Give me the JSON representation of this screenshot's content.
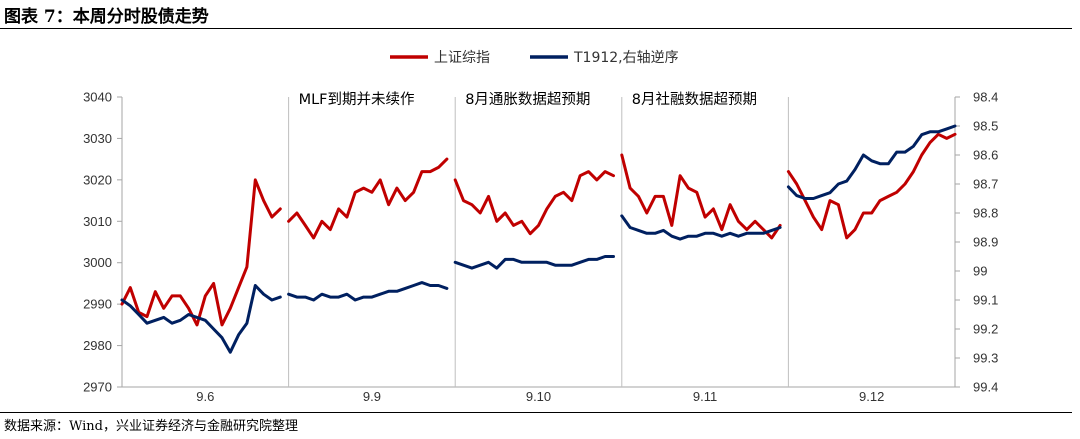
{
  "figure_title": "图表 7：本周分时股债走势",
  "source_note": "数据来源：Wind，兴业证券经济与金融研究院整理",
  "colors": {
    "series_0": "#C00000",
    "series_1": "#002060",
    "axis": "#A6A6A6",
    "divider": "#BFBFBF"
  },
  "chart_data": {
    "type": "line",
    "title": "",
    "legend_position": "top-center",
    "grid": false,
    "xlabel": "",
    "ylabel": "",
    "categories": [
      "9.6",
      "9.9",
      "9.10",
      "9.11",
      "9.12"
    ],
    "ylim": [
      2970,
      3040
    ],
    "y_ticks": [
      "2970",
      "2980",
      "2990",
      "3000",
      "3010",
      "3020",
      "3030",
      "3040"
    ],
    "y2lim": [
      99.4,
      98.4
    ],
    "y2_reversed": true,
    "y2_ticks": [
      "99.4",
      "99.3",
      "99.2",
      "99.1",
      "99",
      "98.9",
      "98.8",
      "98.7",
      "98.6",
      "98.5",
      "98.4"
    ],
    "annotations": [
      {
        "after_day": "9.6",
        "text": "MLF到期并未续作"
      },
      {
        "after_day": "9.9",
        "text": "8月通胀数据超预期"
      },
      {
        "after_day": "9.10",
        "text": "8月社融数据超预期"
      }
    ],
    "x": [
      0.0,
      0.05,
      0.1,
      0.15,
      0.2,
      0.25,
      0.3,
      0.35,
      0.4,
      0.45,
      0.5,
      0.55,
      0.6,
      0.65,
      0.7,
      0.75,
      0.8,
      0.85,
      0.9,
      0.95,
      1.0,
      1.05,
      1.1,
      1.15,
      1.2,
      1.25,
      1.3,
      1.35,
      1.4,
      1.45,
      1.5,
      1.55,
      1.6,
      1.65,
      1.7,
      1.75,
      1.8,
      1.85,
      1.9,
      1.95,
      2.0,
      2.05,
      2.1,
      2.15,
      2.2,
      2.25,
      2.3,
      2.35,
      2.4,
      2.45,
      2.5,
      2.55,
      2.6,
      2.65,
      2.7,
      2.75,
      2.8,
      2.85,
      2.9,
      2.95,
      3.0,
      3.05,
      3.1,
      3.15,
      3.2,
      3.25,
      3.3,
      3.35,
      3.4,
      3.45,
      3.5,
      3.55,
      3.6,
      3.65,
      3.7,
      3.75,
      3.8,
      3.85,
      3.9,
      3.95,
      4.0,
      4.05,
      4.1,
      4.15,
      4.2,
      4.25,
      4.3,
      4.35,
      4.4,
      4.45,
      4.5,
      4.55,
      4.6,
      4.65,
      4.7,
      4.75,
      4.8,
      4.85,
      4.9,
      4.95,
      5.0
    ],
    "series": [
      {
        "name": "上证综指",
        "axis": "left",
        "values": [
          2990,
          2994,
          2988,
          2987,
          2993,
          2989,
          2992,
          2992,
          2989,
          2985,
          2992,
          2995,
          2985,
          2989,
          2994,
          2999,
          3020,
          3015,
          3011,
          3013,
          3010,
          3012,
          3009,
          3006,
          3010,
          3008,
          3013,
          3011,
          3017,
          3018,
          3017,
          3020,
          3014,
          3018,
          3015,
          3017,
          3022,
          3022,
          3023,
          3025,
          3020,
          3015,
          3014,
          3012,
          3016,
          3010,
          3012,
          3009,
          3010,
          3007,
          3009,
          3013,
          3016,
          3017,
          3015,
          3021,
          3022,
          3020,
          3022,
          3021,
          3026,
          3018,
          3016,
          3012,
          3016,
          3016,
          3009,
          3021,
          3018,
          3017,
          3011,
          3013,
          3008,
          3014,
          3010,
          3008,
          3010,
          3008,
          3006,
          3009,
          3022,
          3019,
          3015,
          3011,
          3008,
          3015,
          3014,
          3006,
          3008,
          3012,
          3012,
          3015,
          3016,
          3017,
          3019,
          3022,
          3026,
          3029,
          3031,
          3030,
          3031
        ]
      },
      {
        "name": "T1912,右轴逆序",
        "axis": "right",
        "values": [
          99.1,
          99.12,
          99.15,
          99.18,
          99.17,
          99.16,
          99.18,
          99.17,
          99.15,
          99.16,
          99.17,
          99.2,
          99.23,
          99.28,
          99.22,
          99.18,
          99.05,
          99.08,
          99.1,
          99.09,
          99.08,
          99.09,
          99.09,
          99.1,
          99.08,
          99.09,
          99.09,
          99.08,
          99.1,
          99.09,
          99.09,
          99.08,
          99.07,
          99.07,
          99.06,
          99.05,
          99.04,
          99.05,
          99.05,
          99.06,
          98.97,
          98.98,
          98.99,
          98.98,
          98.97,
          98.99,
          98.96,
          98.96,
          98.97,
          98.97,
          98.97,
          98.97,
          98.98,
          98.98,
          98.98,
          98.97,
          98.96,
          98.96,
          98.95,
          98.95,
          98.81,
          98.85,
          98.86,
          98.87,
          98.87,
          98.86,
          98.88,
          98.89,
          98.88,
          98.88,
          98.87,
          98.87,
          98.88,
          98.87,
          98.88,
          98.87,
          98.87,
          98.87,
          98.86,
          98.85,
          98.71,
          98.74,
          98.75,
          98.75,
          98.74,
          98.73,
          98.7,
          98.69,
          98.65,
          98.6,
          98.62,
          98.63,
          98.63,
          98.59,
          98.59,
          98.57,
          98.53,
          98.52,
          98.52,
          98.51,
          98.5
        ]
      }
    ]
  }
}
